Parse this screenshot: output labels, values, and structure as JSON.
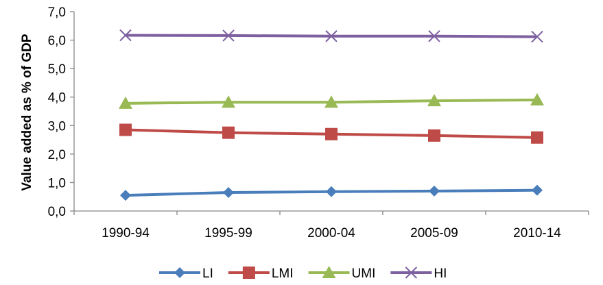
{
  "chart_data": {
    "type": "line",
    "title": "",
    "xlabel": "",
    "ylabel": "Value added as % of GDP",
    "categories": [
      "1990-94",
      "1995-99",
      "2000-04",
      "2005-09",
      "2010-14"
    ],
    "ylim": [
      0,
      7
    ],
    "yticks": [
      "0,0",
      "1,0",
      "2,0",
      "3,0",
      "4,0",
      "5,0",
      "6,0",
      "7,0"
    ],
    "grid": false,
    "legend_position": "bottom",
    "series": [
      {
        "name": "LI",
        "color": "#4a7ebb",
        "marker": "diamond",
        "values": [
          0.55,
          0.65,
          0.68,
          0.7,
          0.73
        ]
      },
      {
        "name": "LMI",
        "color": "#be4b48",
        "marker": "square",
        "values": [
          2.85,
          2.75,
          2.7,
          2.65,
          2.58
        ]
      },
      {
        "name": "UMI",
        "color": "#98b954",
        "marker": "triangle",
        "values": [
          3.78,
          3.82,
          3.82,
          3.87,
          3.9
        ]
      },
      {
        "name": "HI",
        "color": "#7d60a0",
        "marker": "x",
        "values": [
          6.17,
          6.16,
          6.14,
          6.14,
          6.12
        ]
      }
    ]
  }
}
